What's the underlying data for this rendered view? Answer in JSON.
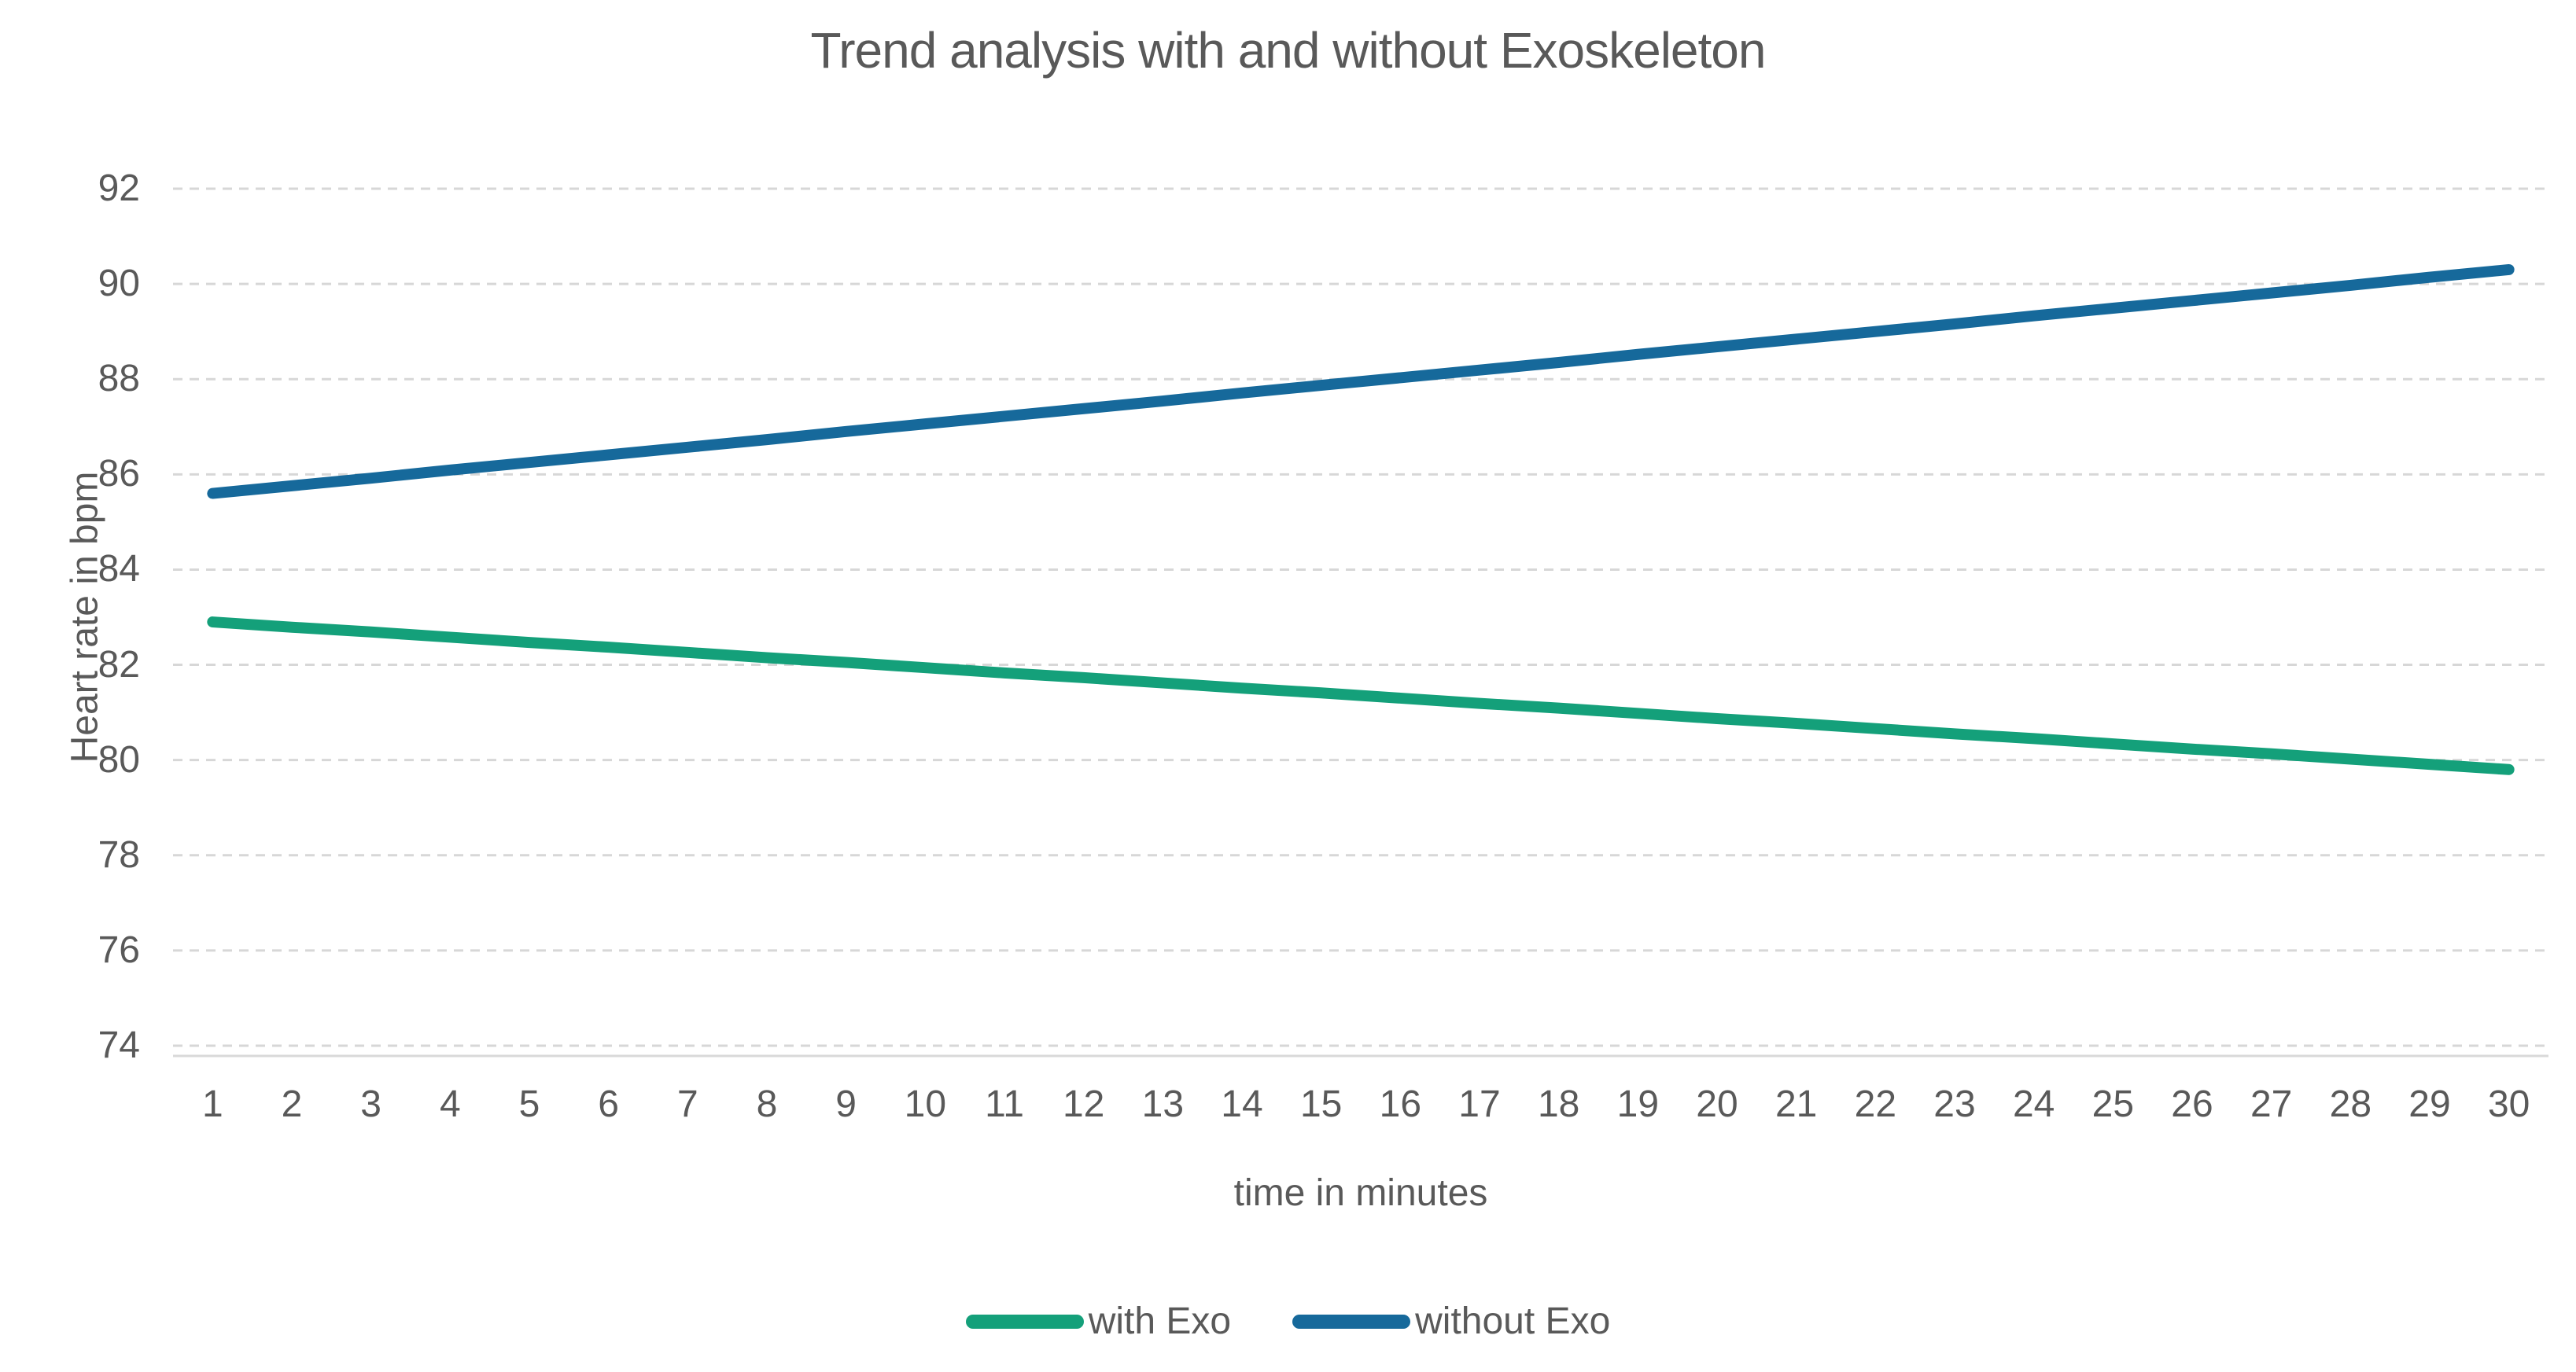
{
  "chart_data": {
    "type": "line",
    "title": "Trend analysis with and without Exoskeleton",
    "xlabel": "time in minutes",
    "ylabel": "Heart rate in bpm",
    "x": [
      1,
      2,
      3,
      4,
      5,
      6,
      7,
      8,
      9,
      10,
      11,
      12,
      13,
      14,
      15,
      16,
      17,
      18,
      19,
      20,
      21,
      22,
      23,
      24,
      25,
      26,
      27,
      28,
      29,
      30
    ],
    "series": [
      {
        "name": "with Exo",
        "color": "#14A07A",
        "values": [
          82.9,
          82.79,
          82.69,
          82.58,
          82.47,
          82.37,
          82.26,
          82.15,
          82.05,
          81.94,
          81.83,
          81.73,
          81.62,
          81.51,
          81.41,
          81.3,
          81.19,
          81.09,
          80.98,
          80.87,
          80.77,
          80.66,
          80.55,
          80.45,
          80.34,
          80.23,
          80.13,
          80.02,
          79.91,
          79.8
        ]
      },
      {
        "name": "without Exo",
        "color": "#16699B",
        "values": [
          85.6,
          85.76,
          85.92,
          86.09,
          86.25,
          86.41,
          86.57,
          86.73,
          86.9,
          87.06,
          87.22,
          87.38,
          87.54,
          87.71,
          87.87,
          88.03,
          88.19,
          88.35,
          88.52,
          88.68,
          88.84,
          89.0,
          89.16,
          89.33,
          89.49,
          89.65,
          89.81,
          89.97,
          90.14,
          90.3
        ]
      }
    ],
    "ylim": [
      74,
      92
    ],
    "yticks": [
      74,
      76,
      78,
      80,
      82,
      84,
      86,
      88,
      90,
      92
    ],
    "grid": "horizontal-dashed",
    "legend_position": "bottom-center",
    "colors": {
      "text": "#595959",
      "gridline": "#D7D7D7",
      "axis_line": "#D9D9D9",
      "background": "#FFFFFF"
    }
  }
}
